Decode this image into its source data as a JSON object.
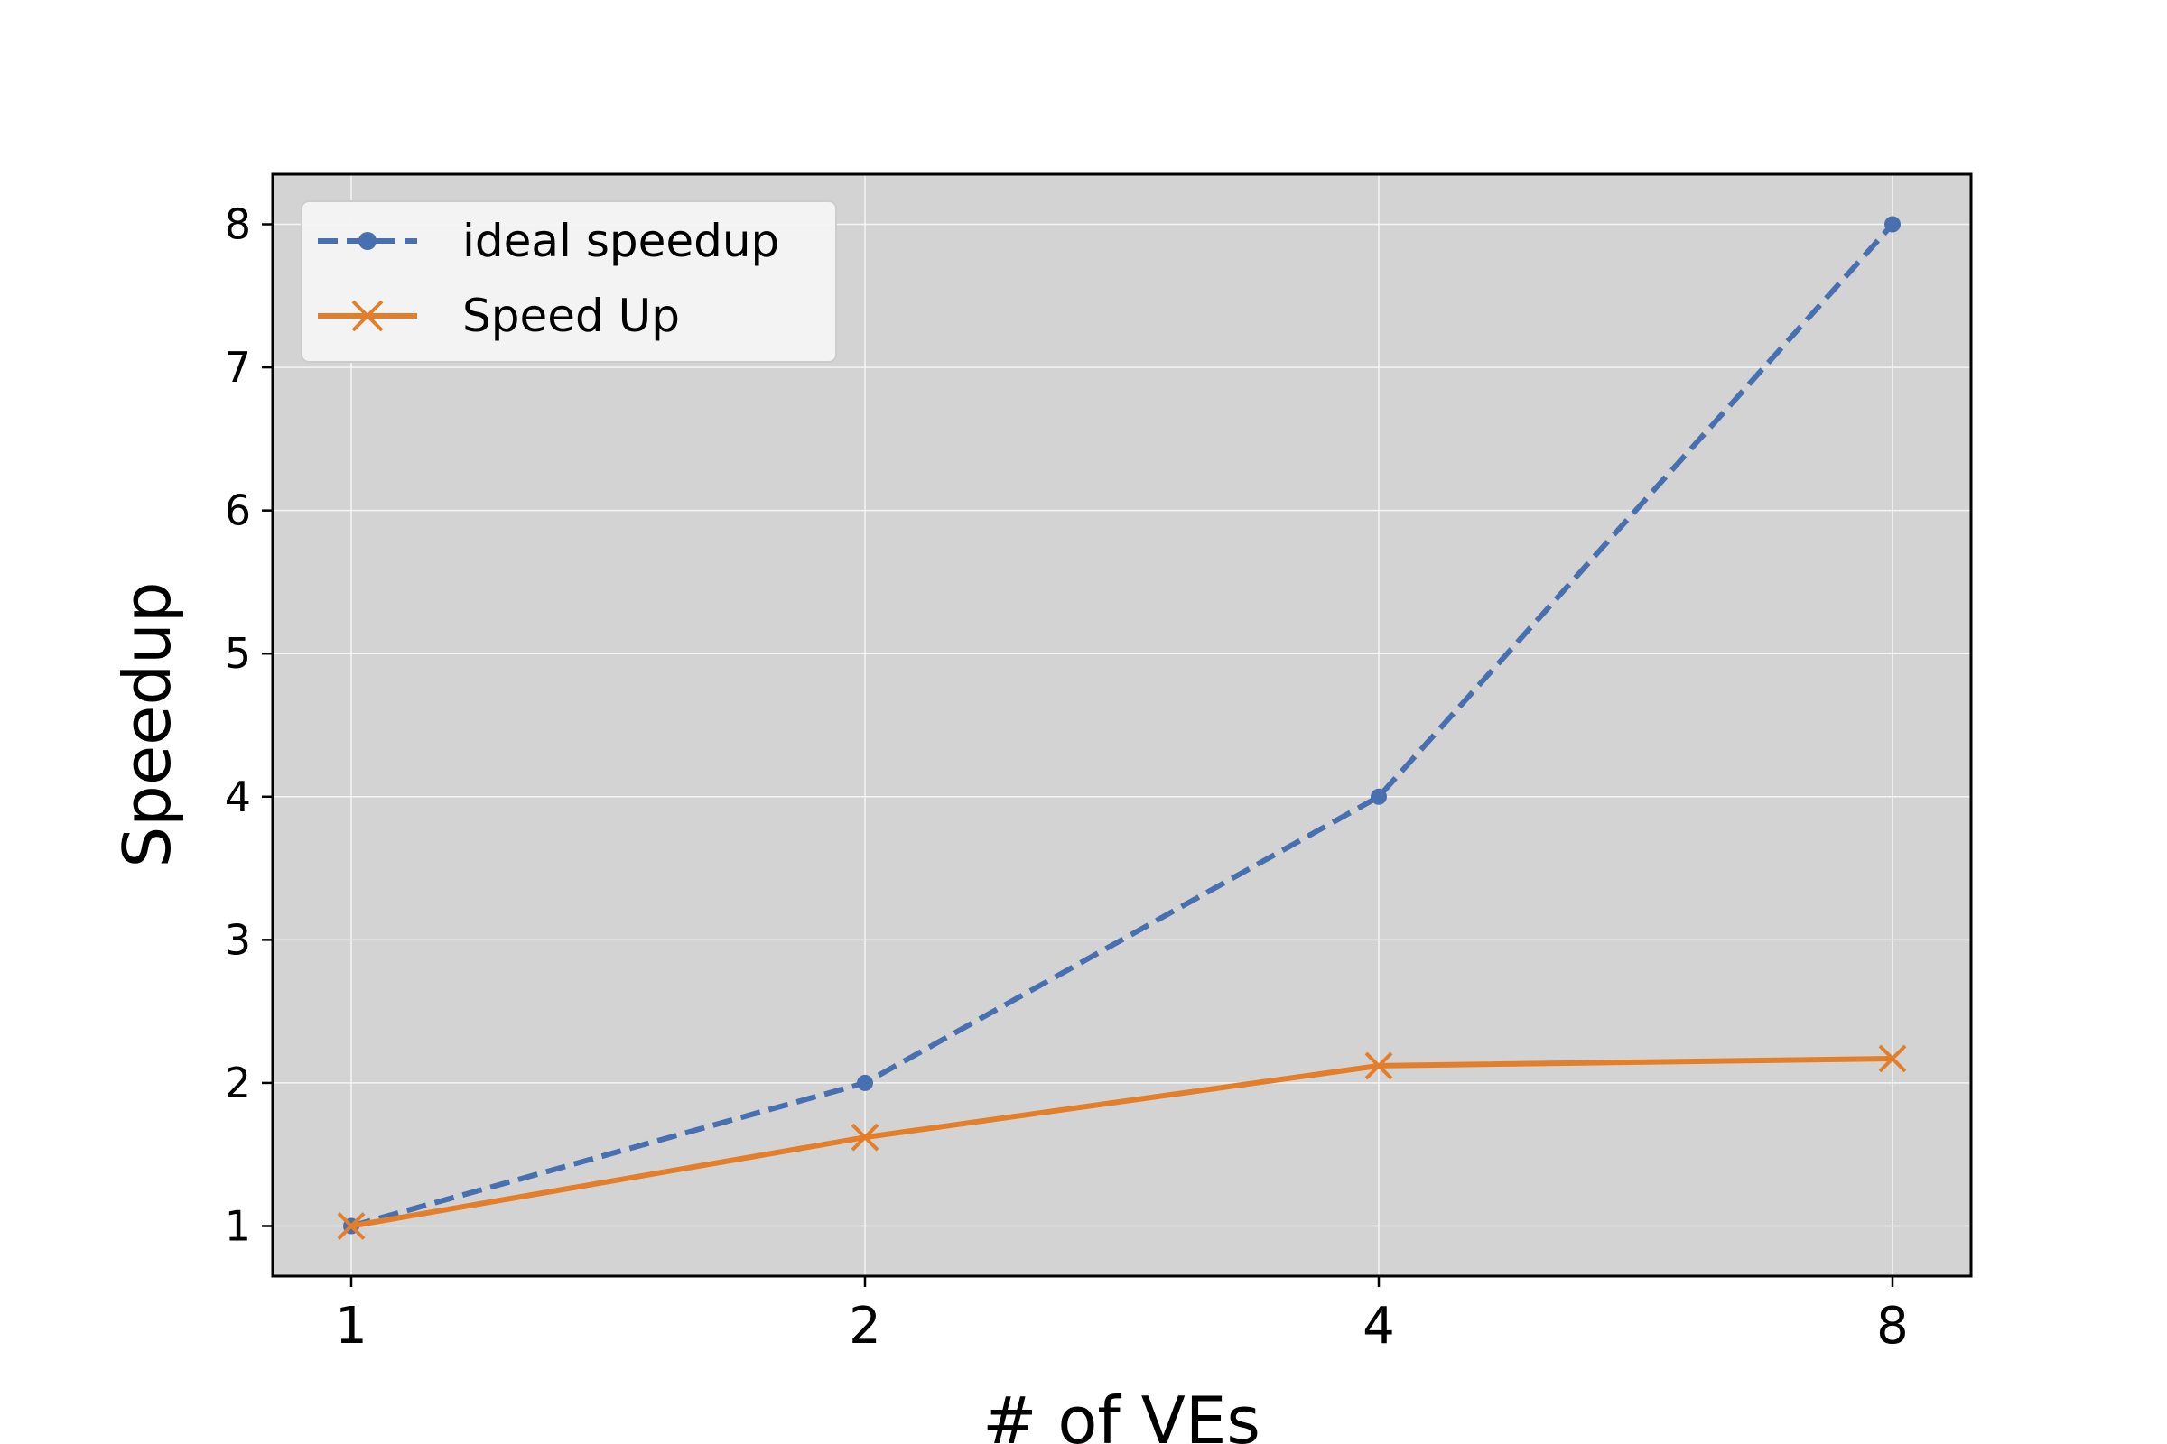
{
  "chart_data": {
    "type": "line",
    "categories": [
      "1",
      "2",
      "4",
      "8"
    ],
    "xlabel": "# of VEs",
    "ylabel": "Speedup",
    "ylim": [
      0.65,
      8.35
    ],
    "yticks": [
      1,
      2,
      3,
      4,
      5,
      6,
      7,
      8
    ],
    "grid": true,
    "legend_position": "upper-left",
    "series": [
      {
        "name": "ideal speedup",
        "values": [
          1,
          2,
          4,
          8
        ],
        "color": "#4870b0",
        "line_style": "dashed",
        "marker": "dot"
      },
      {
        "name": "Speed Up",
        "values": [
          1.0,
          1.62,
          2.12,
          2.17
        ],
        "color": "#e37f2b",
        "line_style": "solid",
        "marker": "x"
      }
    ],
    "colors": {
      "plot_background": "#d3d3d3",
      "grid": "#f5f5f5",
      "legend_background": "#f4f4f4"
    }
  }
}
